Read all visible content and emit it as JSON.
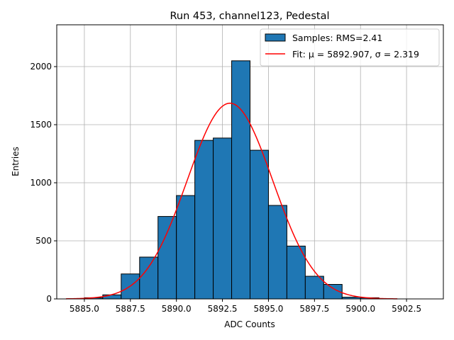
{
  "chart_data": {
    "type": "bar",
    "title": "Run 453, channel123, Pedestal",
    "xlabel": "ADC Counts",
    "ylabel": "Entries",
    "xlim": [
      5883.5,
      5904.5
    ],
    "ylim": [
      0,
      2360
    ],
    "grid": true,
    "legend_position": "top-right",
    "x_ticks": [
      5885.0,
      5887.5,
      5890.0,
      5892.5,
      5895.0,
      5897.5,
      5900.0,
      5902.5
    ],
    "x_tick_labels": [
      "5885.0",
      "5887.5",
      "5890.0",
      "5892.5",
      "5895.0",
      "5897.5",
      "5900.0",
      "5902.5"
    ],
    "y_ticks": [
      0,
      500,
      1000,
      1500,
      2000
    ],
    "y_tick_labels": [
      "0",
      "500",
      "1000",
      "1500",
      "2000"
    ],
    "bin_width": 1,
    "bins": [
      {
        "x0": 5885,
        "x1": 5886,
        "count": 10
      },
      {
        "x0": 5886,
        "x1": 5887,
        "count": 35
      },
      {
        "x0": 5887,
        "x1": 5888,
        "count": 215
      },
      {
        "x0": 5888,
        "x1": 5889,
        "count": 360
      },
      {
        "x0": 5889,
        "x1": 5890,
        "count": 710
      },
      {
        "x0": 5890,
        "x1": 5891,
        "count": 890
      },
      {
        "x0": 5891,
        "x1": 5892,
        "count": 1365
      },
      {
        "x0": 5892,
        "x1": 5893,
        "count": 1385
      },
      {
        "x0": 5893,
        "x1": 5894,
        "count": 2050
      },
      {
        "x0": 5894,
        "x1": 5895,
        "count": 1280
      },
      {
        "x0": 5895,
        "x1": 5896,
        "count": 805
      },
      {
        "x0": 5896,
        "x1": 5897,
        "count": 455
      },
      {
        "x0": 5897,
        "x1": 5898,
        "count": 195
      },
      {
        "x0": 5898,
        "x1": 5899,
        "count": 125
      },
      {
        "x0": 5899,
        "x1": 5900,
        "count": 15
      },
      {
        "x0": 5900,
        "x1": 5901,
        "count": 10
      }
    ],
    "fit": {
      "mu": 5892.907,
      "sigma": 2.319,
      "amplitude": 1685,
      "x_range": [
        5884,
        5902
      ]
    },
    "series": [
      {
        "name": "Samples: RMS=2.41",
        "type": "histogram",
        "color": "#1f77b4",
        "edge_color": "#000000"
      },
      {
        "name": "Fit: μ = 5892.907, σ = 2.319",
        "type": "line",
        "color": "#ff0000"
      }
    ]
  }
}
